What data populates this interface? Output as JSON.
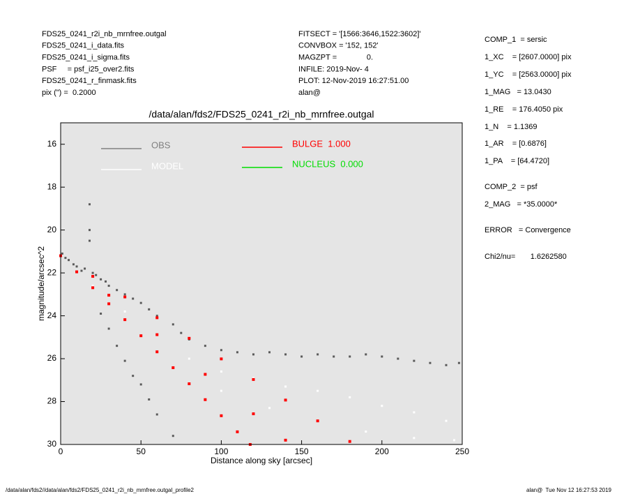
{
  "header": {
    "left": [
      "FDS25_0241_r2i_nb_mrnfree.outgal",
      "FDS25_0241_i_data.fits",
      "FDS25_0241_i_sigma.fits",
      "PSF     = psf_i25_over2.fits",
      "FDS25_0241_r_finmask.fits",
      "pix (\") =  0.2000"
    ],
    "middle": [
      "FITSECT = '[1566:3646,1522:3602]'",
      "CONVBOX = '152, 152'",
      "MAGZPT =              0.",
      "INFILE: 2019-Nov- 4",
      "PLOT: 12-Nov-2019 16:27:51.00",
      "alan@"
    ],
    "right": [
      "COMP_1  = sersic",
      "1_XC    = [2607.0000] pix",
      "1_YC    = [2563.0000] pix",
      "1_MAG   = 13.0430",
      "1_RE    = 176.4050 pix",
      "1_N    = 1.1369",
      "1_AR    = [0.6876]",
      "1_PA    = [64.4720]",
      "COMP_2  = psf",
      "2_MAG   = *35.0000*",
      "ERROR   = Convergence",
      "Chi2/nu=       1.6262580"
    ]
  },
  "footer": {
    "left": "/data/alan/fds2//data/alan/fds2/FDS25_0241_r2i_nb_mrnfree.outgal_profile2",
    "right": "alan@  Tue Nov 12 16:27:53 2019"
  },
  "chart_data": {
    "type": "scatter",
    "title": "/data/alan/fds2/FDS25_0241_r2i_nb_mrnfree.outgal",
    "x_label": "Distance along sky [arcsec]",
    "y_label": "magnitude/arcsec^2",
    "xlim": [
      0,
      250
    ],
    "ylim": [
      30,
      15
    ],
    "xticks": [
      0,
      50,
      100,
      150,
      200,
      250
    ],
    "yticks": [
      16,
      18,
      20,
      22,
      24,
      26,
      28,
      30
    ],
    "background": "#e5e5e5",
    "series": [
      {
        "name": "OBS",
        "color": "#5a5a5a",
        "x": [
          1,
          3,
          5,
          8,
          10,
          13,
          15,
          18,
          18,
          18,
          20,
          22,
          25,
          28,
          30,
          35,
          40,
          45,
          50,
          55,
          60,
          70,
          75,
          80,
          90,
          100,
          110,
          120,
          130,
          140,
          150,
          160,
          170,
          180,
          190,
          200,
          210,
          220,
          230,
          240,
          248,
          25,
          30,
          35,
          40,
          45,
          50,
          55,
          60,
          70
        ],
        "y": [
          21.1,
          21.3,
          21.4,
          21.6,
          21.7,
          21.9,
          21.8,
          18.8,
          20.0,
          20.5,
          22.0,
          22.1,
          22.3,
          22.4,
          22.6,
          22.8,
          23.0,
          23.2,
          23.4,
          23.7,
          24.0,
          24.4,
          24.8,
          25.1,
          25.4,
          25.6,
          25.7,
          25.8,
          25.7,
          25.8,
          25.9,
          25.8,
          25.9,
          25.9,
          25.8,
          25.9,
          26.0,
          26.1,
          26.2,
          26.3,
          26.2,
          23.9,
          24.6,
          25.4,
          26.1,
          26.8,
          27.2,
          27.9,
          28.6,
          29.6
        ]
      },
      {
        "name": "MODEL",
        "color": "#ffffff",
        "x": [
          20,
          40,
          60,
          80,
          100,
          120,
          140,
          160,
          180,
          200,
          220,
          240,
          100,
          130,
          160,
          190,
          220,
          245
        ],
        "y": [
          22.6,
          23.8,
          24.9,
          26.0,
          26.6,
          26.9,
          27.3,
          27.5,
          27.8,
          28.2,
          28.5,
          28.9,
          27.5,
          28.3,
          28.9,
          29.4,
          29.7,
          29.8
        ]
      },
      {
        "name": "BULGE  1.000",
        "color": "#ff0000",
        "x": [
          0,
          10,
          20,
          30,
          40,
          50,
          60,
          70,
          80,
          90,
          100,
          110,
          118,
          20,
          40,
          60,
          80,
          100,
          120,
          140,
          160,
          180,
          30,
          60,
          90,
          120,
          140
        ],
        "y": [
          21.2,
          21.95,
          22.69,
          23.44,
          24.18,
          24.93,
          25.68,
          26.42,
          27.17,
          27.91,
          28.66,
          29.41,
          30.0,
          22.16,
          23.12,
          24.09,
          25.05,
          26.01,
          26.97,
          27.93,
          28.9,
          29.86,
          23.04,
          24.88,
          26.73,
          28.57,
          29.8
        ]
      },
      {
        "name": "NUCLEUS  0.000",
        "color": "#00dd00",
        "x": [],
        "y": []
      }
    ]
  }
}
